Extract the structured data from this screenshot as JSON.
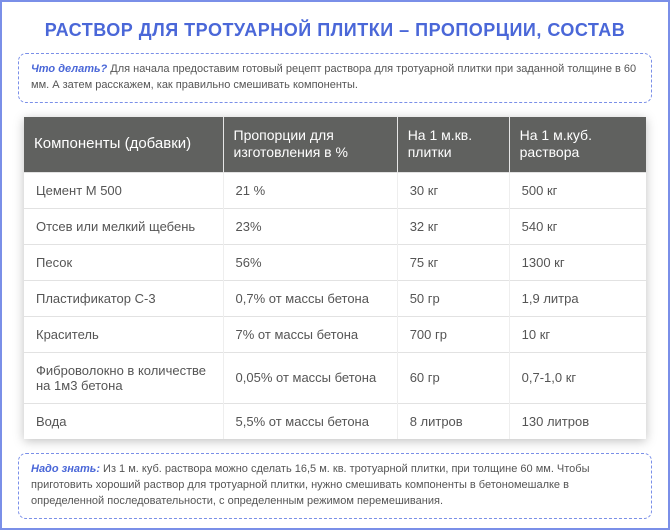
{
  "title": "РАСТВОР ДЛЯ ТРОТУАРНОЙ ПЛИТКИ – ПРОПОРЦИИ, СОСТАВ",
  "intro": {
    "lead": "Что делать?",
    "text": " Для начала предоставим готовый рецепт раствора для тротуарной плитки при заданной толщине в 60 мм. А затем расскажем, как правильно смешивать компоненты."
  },
  "table": {
    "columns": [
      "Компоненты (добавки)",
      "Пропорции для изготовления в %",
      "На 1 м.кв. плитки",
      "На 1 м.куб. раствора"
    ],
    "col_widths": [
      "32%",
      "28%",
      "18%",
      "22%"
    ],
    "rows": [
      [
        "Цемент М 500",
        "21 %",
        "30 кг",
        "500 кг"
      ],
      [
        "Отсев или мелкий щебень",
        "23%",
        "32 кг",
        "540 кг"
      ],
      [
        "Песок",
        "56%",
        "75 кг",
        "1300 кг"
      ],
      [
        "Пластификатор С-3",
        "0,7% от массы бетона",
        "50 гр",
        "1,9 литра"
      ],
      [
        "Краситель",
        "7% от массы бетона",
        "700 гр",
        "10 кг"
      ],
      [
        "Фиброволокно в количестве на 1м3 бетона",
        "0,05% от массы бетона",
        "60 гр",
        "0,7-1,0 кг"
      ],
      [
        "Вода",
        "5,5% от массы бетона",
        "8 литров",
        "130 литров"
      ]
    ]
  },
  "footer": {
    "lead": "Надо знать:",
    "text": " Из 1 м. куб. раствора можно сделать 16,5 м. кв. тротуарной плитки, при толщине 60 мм. Чтобы приготовить хороший раствор для тротуарной плитки, нужно смешивать компоненты в бетономешалке в определенной последовательности, с определенным режимом перемешивания."
  },
  "style": {
    "border_color": "#7a8fe8",
    "title_color": "#4a67d8",
    "header_bg": "#60615f",
    "header_fg": "#ffffff",
    "body_text": "#555555",
    "row_border": "#e2e2e2"
  }
}
